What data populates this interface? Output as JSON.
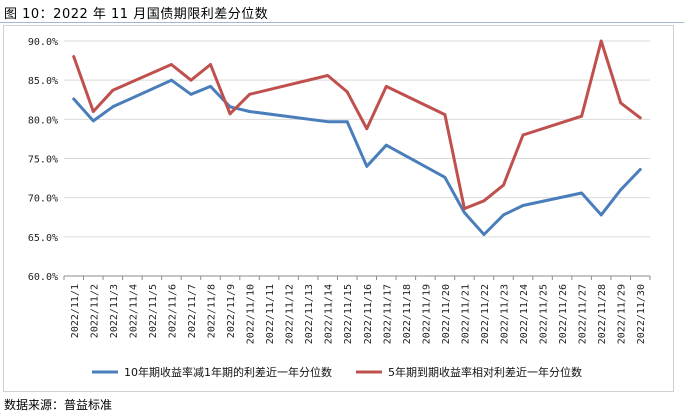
{
  "header": {
    "title": "图 10：2022 年 11 月国债期限利差分位数"
  },
  "footer": {
    "source": "数据来源：普益标准"
  },
  "chart_data": {
    "type": "line",
    "categories": [
      "2022/11/1",
      "2022/11/2",
      "2022/11/3",
      "2022/11/4",
      "2022/11/5",
      "2022/11/6",
      "2022/11/7",
      "2022/11/8",
      "2022/11/9",
      "2022/11/10",
      "2022/11/11",
      "2022/11/12",
      "2022/11/13",
      "2022/11/14",
      "2022/11/15",
      "2022/11/16",
      "2022/11/17",
      "2022/11/18",
      "2022/11/19",
      "2022/11/20",
      "2022/11/21",
      "2022/11/22",
      "2022/11/23",
      "2022/11/24",
      "2022/11/25",
      "2022/11/26",
      "2022/11/27",
      "2022/11/28",
      "2022/11/29",
      "2022/11/30"
    ],
    "series": [
      {
        "name": "10年期收益率减1年期的利差近一年分位数",
        "color": "#4a7ebb",
        "values": [
          82.6,
          79.8,
          81.6,
          null,
          null,
          85.0,
          83.2,
          84.2,
          81.6,
          81.0,
          null,
          null,
          null,
          79.7,
          79.7,
          74.0,
          76.7,
          null,
          null,
          72.6,
          68.1,
          65.3,
          67.8,
          69.0,
          null,
          null,
          70.6,
          67.8,
          71.0,
          73.6
        ]
      },
      {
        "name": "5年期到期收益率相对利差近一年分位数",
        "color": "#c0504d",
        "values": [
          88.0,
          81.0,
          83.7,
          null,
          null,
          87.0,
          85.0,
          87.0,
          80.7,
          83.2,
          null,
          null,
          null,
          85.6,
          83.5,
          78.8,
          84.2,
          null,
          null,
          80.6,
          68.6,
          69.6,
          71.6,
          78.0,
          null,
          null,
          80.4,
          90.0,
          82.1,
          80.2
        ]
      }
    ],
    "ylim": [
      60,
      90
    ],
    "yticks": [
      "60.0%",
      "65.0%",
      "70.0%",
      "75.0%",
      "80.0%",
      "85.0%",
      "90.0%"
    ],
    "title": "",
    "xlabel": "",
    "ylabel": "",
    "legend_position": "bottom"
  }
}
